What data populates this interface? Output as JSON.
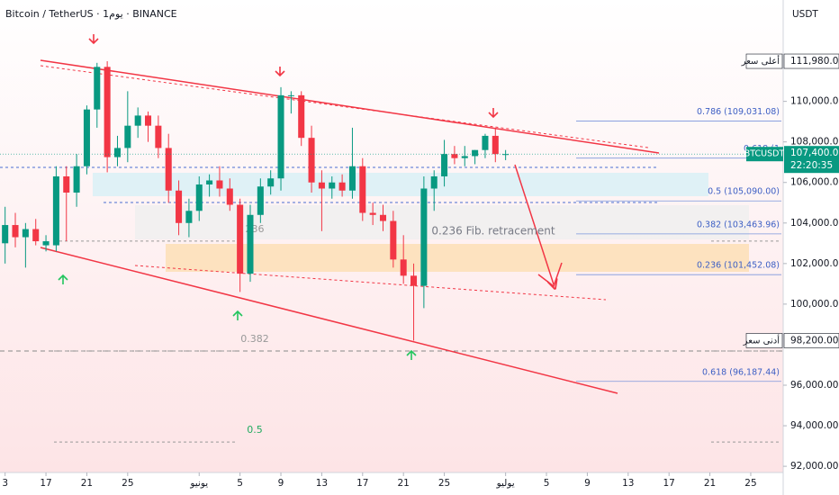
{
  "chart_data": {
    "type": "candlestick",
    "title": "Bitcoin / TetherUS · 1يوم · BINANCE",
    "currency": "USDT",
    "up_color": "#089981",
    "down_color": "#f23645",
    "grid": false,
    "x": [
      0,
      1,
      2,
      3,
      4,
      5,
      6,
      7,
      8,
      9,
      10,
      11,
      12,
      13,
      14,
      15,
      16,
      17,
      18,
      19,
      20,
      21,
      22,
      23,
      24,
      25,
      26,
      27,
      28,
      29,
      30,
      31,
      32,
      33,
      34,
      35,
      36,
      37,
      38,
      39,
      40,
      41,
      42,
      43,
      44,
      45,
      46,
      47,
      48,
      49
    ],
    "open": [
      103000,
      103900,
      103300,
      103700,
      102900,
      102900,
      106300,
      105500,
      106800,
      109600,
      111700,
      107250,
      107700,
      108800,
      109300,
      108800,
      107700,
      105600,
      104000,
      104600,
      105900,
      106100,
      105700,
      104900,
      101500,
      104400,
      105800,
      106200,
      110300,
      110300,
      108200,
      106000,
      105700,
      106000,
      105600,
      106800,
      104500,
      104400,
      104100,
      102200,
      101400,
      100900,
      105700,
      106300,
      107400,
      107200,
      107300,
      107600,
      108300,
      107400
    ],
    "high": [
      104800,
      104500,
      104000,
      104200,
      103400,
      106800,
      106800,
      107400,
      109800,
      111900,
      111980,
      108300,
      110500,
      109700,
      109500,
      109300,
      108400,
      106100,
      105200,
      106300,
      106400,
      106800,
      106200,
      105200,
      104900,
      106200,
      106600,
      110700,
      110500,
      110500,
      108800,
      106600,
      106300,
      106400,
      108700,
      107200,
      105000,
      104900,
      104600,
      103400,
      102000,
      106300,
      106600,
      108100,
      107800,
      107800,
      107600,
      108400,
      108700,
      107600
    ],
    "low": [
      102000,
      102800,
      101800,
      102900,
      102600,
      102600,
      103100,
      104800,
      106400,
      108700,
      106500,
      106800,
      107000,
      108200,
      108000,
      107200,
      105000,
      103400,
      103300,
      104100,
      105300,
      105300,
      104600,
      100600,
      101100,
      104000,
      105400,
      105600,
      109400,
      107800,
      105500,
      103600,
      105200,
      105300,
      105200,
      104100,
      103900,
      103600,
      101800,
      101000,
      98200,
      99800,
      104600,
      105800,
      106900,
      106800,
      106900,
      107200,
      107000,
      107100
    ],
    "close": [
      103900,
      103300,
      103700,
      103100,
      103100,
      106300,
      105500,
      106800,
      109600,
      111700,
      107250,
      107700,
      108800,
      109300,
      108800,
      107700,
      105600,
      104000,
      104600,
      105900,
      106100,
      105700,
      104900,
      101500,
      104400,
      105800,
      106200,
      110300,
      110300,
      108200,
      106000,
      105700,
      106000,
      105600,
      106800,
      104500,
      104400,
      104100,
      102200,
      101400,
      100900,
      105700,
      106300,
      107400,
      107200,
      107300,
      107600,
      108300,
      107400,
      107400
    ],
    "xlim": [
      -0.5,
      76
    ],
    "xticks": [
      {
        "value": 0,
        "label": "3"
      },
      {
        "value": 4,
        "label": "17"
      },
      {
        "value": 8,
        "label": "21"
      },
      {
        "value": 12,
        "label": "25"
      },
      {
        "value": 19,
        "label": "يونيو"
      },
      {
        "value": 23,
        "label": "5"
      },
      {
        "value": 27,
        "label": "9"
      },
      {
        "value": 31,
        "label": "13"
      },
      {
        "value": 35,
        "label": "17"
      },
      {
        "value": 39,
        "label": "21"
      },
      {
        "value": 43,
        "label": "25"
      },
      {
        "value": 49,
        "label": "يوليو"
      },
      {
        "value": 53,
        "label": "5"
      },
      {
        "value": 57,
        "label": "9"
      },
      {
        "value": 61,
        "label": "13"
      },
      {
        "value": 65,
        "label": "17"
      },
      {
        "value": 69,
        "label": "21"
      },
      {
        "value": 73,
        "label": "25"
      }
    ],
    "ylim": [
      91250,
      115000
    ],
    "yticks": [
      {
        "value": 110000,
        "label": "110,000.00"
      },
      {
        "value": 108000,
        "label": "108,000.00"
      },
      {
        "value": 106000,
        "label": "106,000.00"
      },
      {
        "value": 104000,
        "label": "104,000.00"
      },
      {
        "value": 102000,
        "label": "102,000.00"
      },
      {
        "value": 100000,
        "label": "100,000.00"
      },
      {
        "value": 96000,
        "label": "96,000.00"
      },
      {
        "value": 94000,
        "label": "94,000.00"
      },
      {
        "value": 92000,
        "label": "92,000.00"
      }
    ],
    "fib_levels": [
      {
        "label": "0.786 (109,031.08)",
        "value": 109031.08
      },
      {
        "label": "0.618 (1",
        "value": 107200
      },
      {
        "label": "0.5 (105,090.00)",
        "value": 105090
      },
      {
        "label": "0.382 (103,463.96)",
        "value": 103463.96
      },
      {
        "label": "0.236 (101,452.08)",
        "value": 101452.08
      },
      {
        "label": "0.618 (96,187.44)",
        "value": 96187.44
      }
    ],
    "left_fib_levels": [
      {
        "label": "236",
        "value": 103111
      },
      {
        "label": "0.382",
        "value": 97689
      },
      {
        "label": "0.5",
        "value": 93200
      }
    ],
    "annotation": "0.236 Fib. retracement",
    "price_tags": [
      {
        "name": "أعلى سعر",
        "value": 111980,
        "label": "111,980.00"
      },
      {
        "name": "أدنى سعر",
        "value": 98200,
        "label": "98,200.00"
      }
    ],
    "last_price": {
      "symbol": "BTCUSDT",
      "value": 107400.01,
      "label": "107,400.01",
      "countdown": "22:20:35"
    }
  }
}
